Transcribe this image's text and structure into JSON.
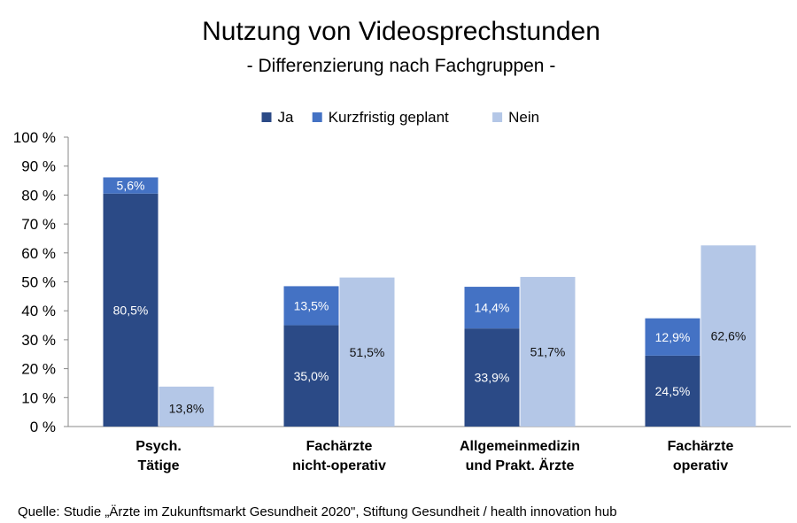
{
  "chart_data": {
    "type": "bar",
    "title": "Nutzung von Videosprechstunden",
    "subtitle": "- Differenzierung nach Fachgruppen -",
    "categories": [
      [
        "Psych.",
        "Tätige"
      ],
      [
        "Fachärzte",
        "nicht-operativ"
      ],
      [
        "Allgemeinmedizin",
        "und Prakt. Ärzte"
      ],
      [
        "Fachärzte",
        "operativ"
      ]
    ],
    "series": [
      {
        "name": "Ja",
        "values": [
          80.5,
          35.0,
          33.9,
          24.5
        ],
        "labels": [
          "80,5%",
          "35,0%",
          "33,9%",
          "24,5%"
        ],
        "color": "#2b4a86",
        "stack": "a",
        "label_color": "#ffffff"
      },
      {
        "name": "Kurzfristig geplant",
        "values": [
          5.6,
          13.5,
          14.4,
          12.9
        ],
        "labels": [
          "5,6%",
          "13,5%",
          "14,4%",
          "12,9%"
        ],
        "color": "#4472c4",
        "stack": "a",
        "label_color": "#ffffff"
      },
      {
        "name": "Nein",
        "values": [
          13.8,
          51.5,
          51.7,
          62.6
        ],
        "labels": [
          "13,8%",
          "51,5%",
          "51,7%",
          "62,6%"
        ],
        "color": "#b4c7e7",
        "stack": "b",
        "label_color": "#111111"
      }
    ],
    "ylim": [
      0,
      100
    ],
    "yticks": [
      "0 %",
      "10 %",
      "20 %",
      "30 %",
      "40 %",
      "50 %",
      "60 %",
      "70 %",
      "80 %",
      "90 %",
      "100 %"
    ],
    "legend_position": "top-center",
    "grid": false
  },
  "source": "Quelle: Studie „Ärzte im Zukunftsmarkt Gesundheit 2020\", Stiftung Gesundheit / health innovation hub"
}
